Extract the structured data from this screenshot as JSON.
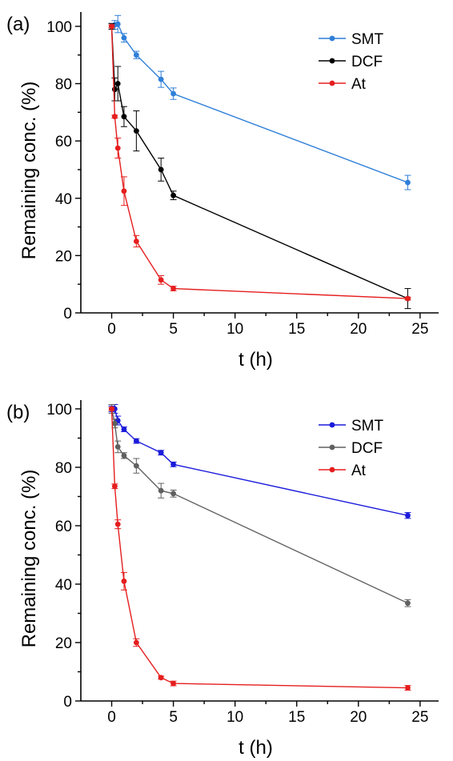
{
  "chart_data": [
    {
      "type": "line",
      "panel_label": "(a)",
      "xlabel": "t (h)",
      "ylabel": "Remaining conc. (%)",
      "xlim": [
        -2.5,
        26.5
      ],
      "ylim": [
        0,
        105
      ],
      "xticks": [
        0,
        5,
        10,
        15,
        20,
        25
      ],
      "yticks": [
        0,
        20,
        40,
        60,
        80,
        100
      ],
      "legend_position": "top-right",
      "series": [
        {
          "name": "SMT",
          "color": "#2f7fd8",
          "x": [
            0,
            0.25,
            0.5,
            1,
            2,
            4,
            5,
            24
          ],
          "y": [
            100,
            100.5,
            100.8,
            96,
            90,
            81.5,
            76.5,
            45.5
          ],
          "err": [
            1,
            1.5,
            3,
            1.5,
            1.3,
            2.8,
            2,
            2.5
          ]
        },
        {
          "name": "DCF",
          "color": "#000000",
          "x": [
            0,
            0.25,
            0.5,
            1,
            2,
            4,
            5,
            24
          ],
          "y": [
            100,
            78,
            80,
            68.5,
            63.5,
            50,
            41,
            5
          ],
          "err": [
            1,
            4,
            6,
            3.5,
            7,
            4,
            1.5,
            3.5
          ]
        },
        {
          "name": "At",
          "color": "#e51e1e",
          "x": [
            0,
            0.25,
            0.5,
            1,
            2,
            4,
            5,
            24
          ],
          "y": [
            100,
            68.5,
            57.5,
            42.5,
            25,
            11.5,
            8.5,
            5
          ],
          "err": [
            0.5,
            0.5,
            3.5,
            5,
            2,
            1.5,
            0.8,
            0.5
          ]
        }
      ]
    },
    {
      "type": "line",
      "panel_label": "(b)",
      "xlabel": "t (h)",
      "ylabel": "Remaining conc. (%)",
      "xlim": [
        -2.5,
        26.5
      ],
      "ylim": [
        0,
        103
      ],
      "xticks": [
        0,
        5,
        10,
        15,
        20,
        25
      ],
      "yticks": [
        0,
        20,
        40,
        60,
        80,
        100
      ],
      "legend_position": "top-right",
      "series": [
        {
          "name": "SMT",
          "color": "#1a1adb",
          "x": [
            0,
            0.25,
            0.5,
            1,
            2,
            4,
            5,
            24
          ],
          "y": [
            100,
            100,
            96,
            93,
            89,
            85,
            81,
            63.5
          ],
          "err": [
            1,
            1.5,
            1.5,
            0.8,
            0.8,
            0.8,
            0.8,
            1
          ]
        },
        {
          "name": "DCF",
          "color": "#606060",
          "x": [
            0,
            0.25,
            0.5,
            1,
            2,
            4,
            5,
            24
          ],
          "y": [
            100,
            95,
            87,
            84,
            80.5,
            72,
            71,
            33.5
          ],
          "err": [
            1.5,
            1.5,
            2,
            1,
            2.5,
            2.5,
            1.2,
            1.2
          ]
        },
        {
          "name": "At",
          "color": "#e51e1e",
          "x": [
            0,
            0.25,
            0.5,
            1,
            2,
            4,
            5,
            24
          ],
          "y": [
            100,
            73.5,
            60.5,
            41,
            20,
            8,
            6,
            4.5
          ],
          "err": [
            0.5,
            0.8,
            1.5,
            3,
            1.3,
            0.5,
            0.8,
            0.8
          ]
        }
      ]
    }
  ]
}
